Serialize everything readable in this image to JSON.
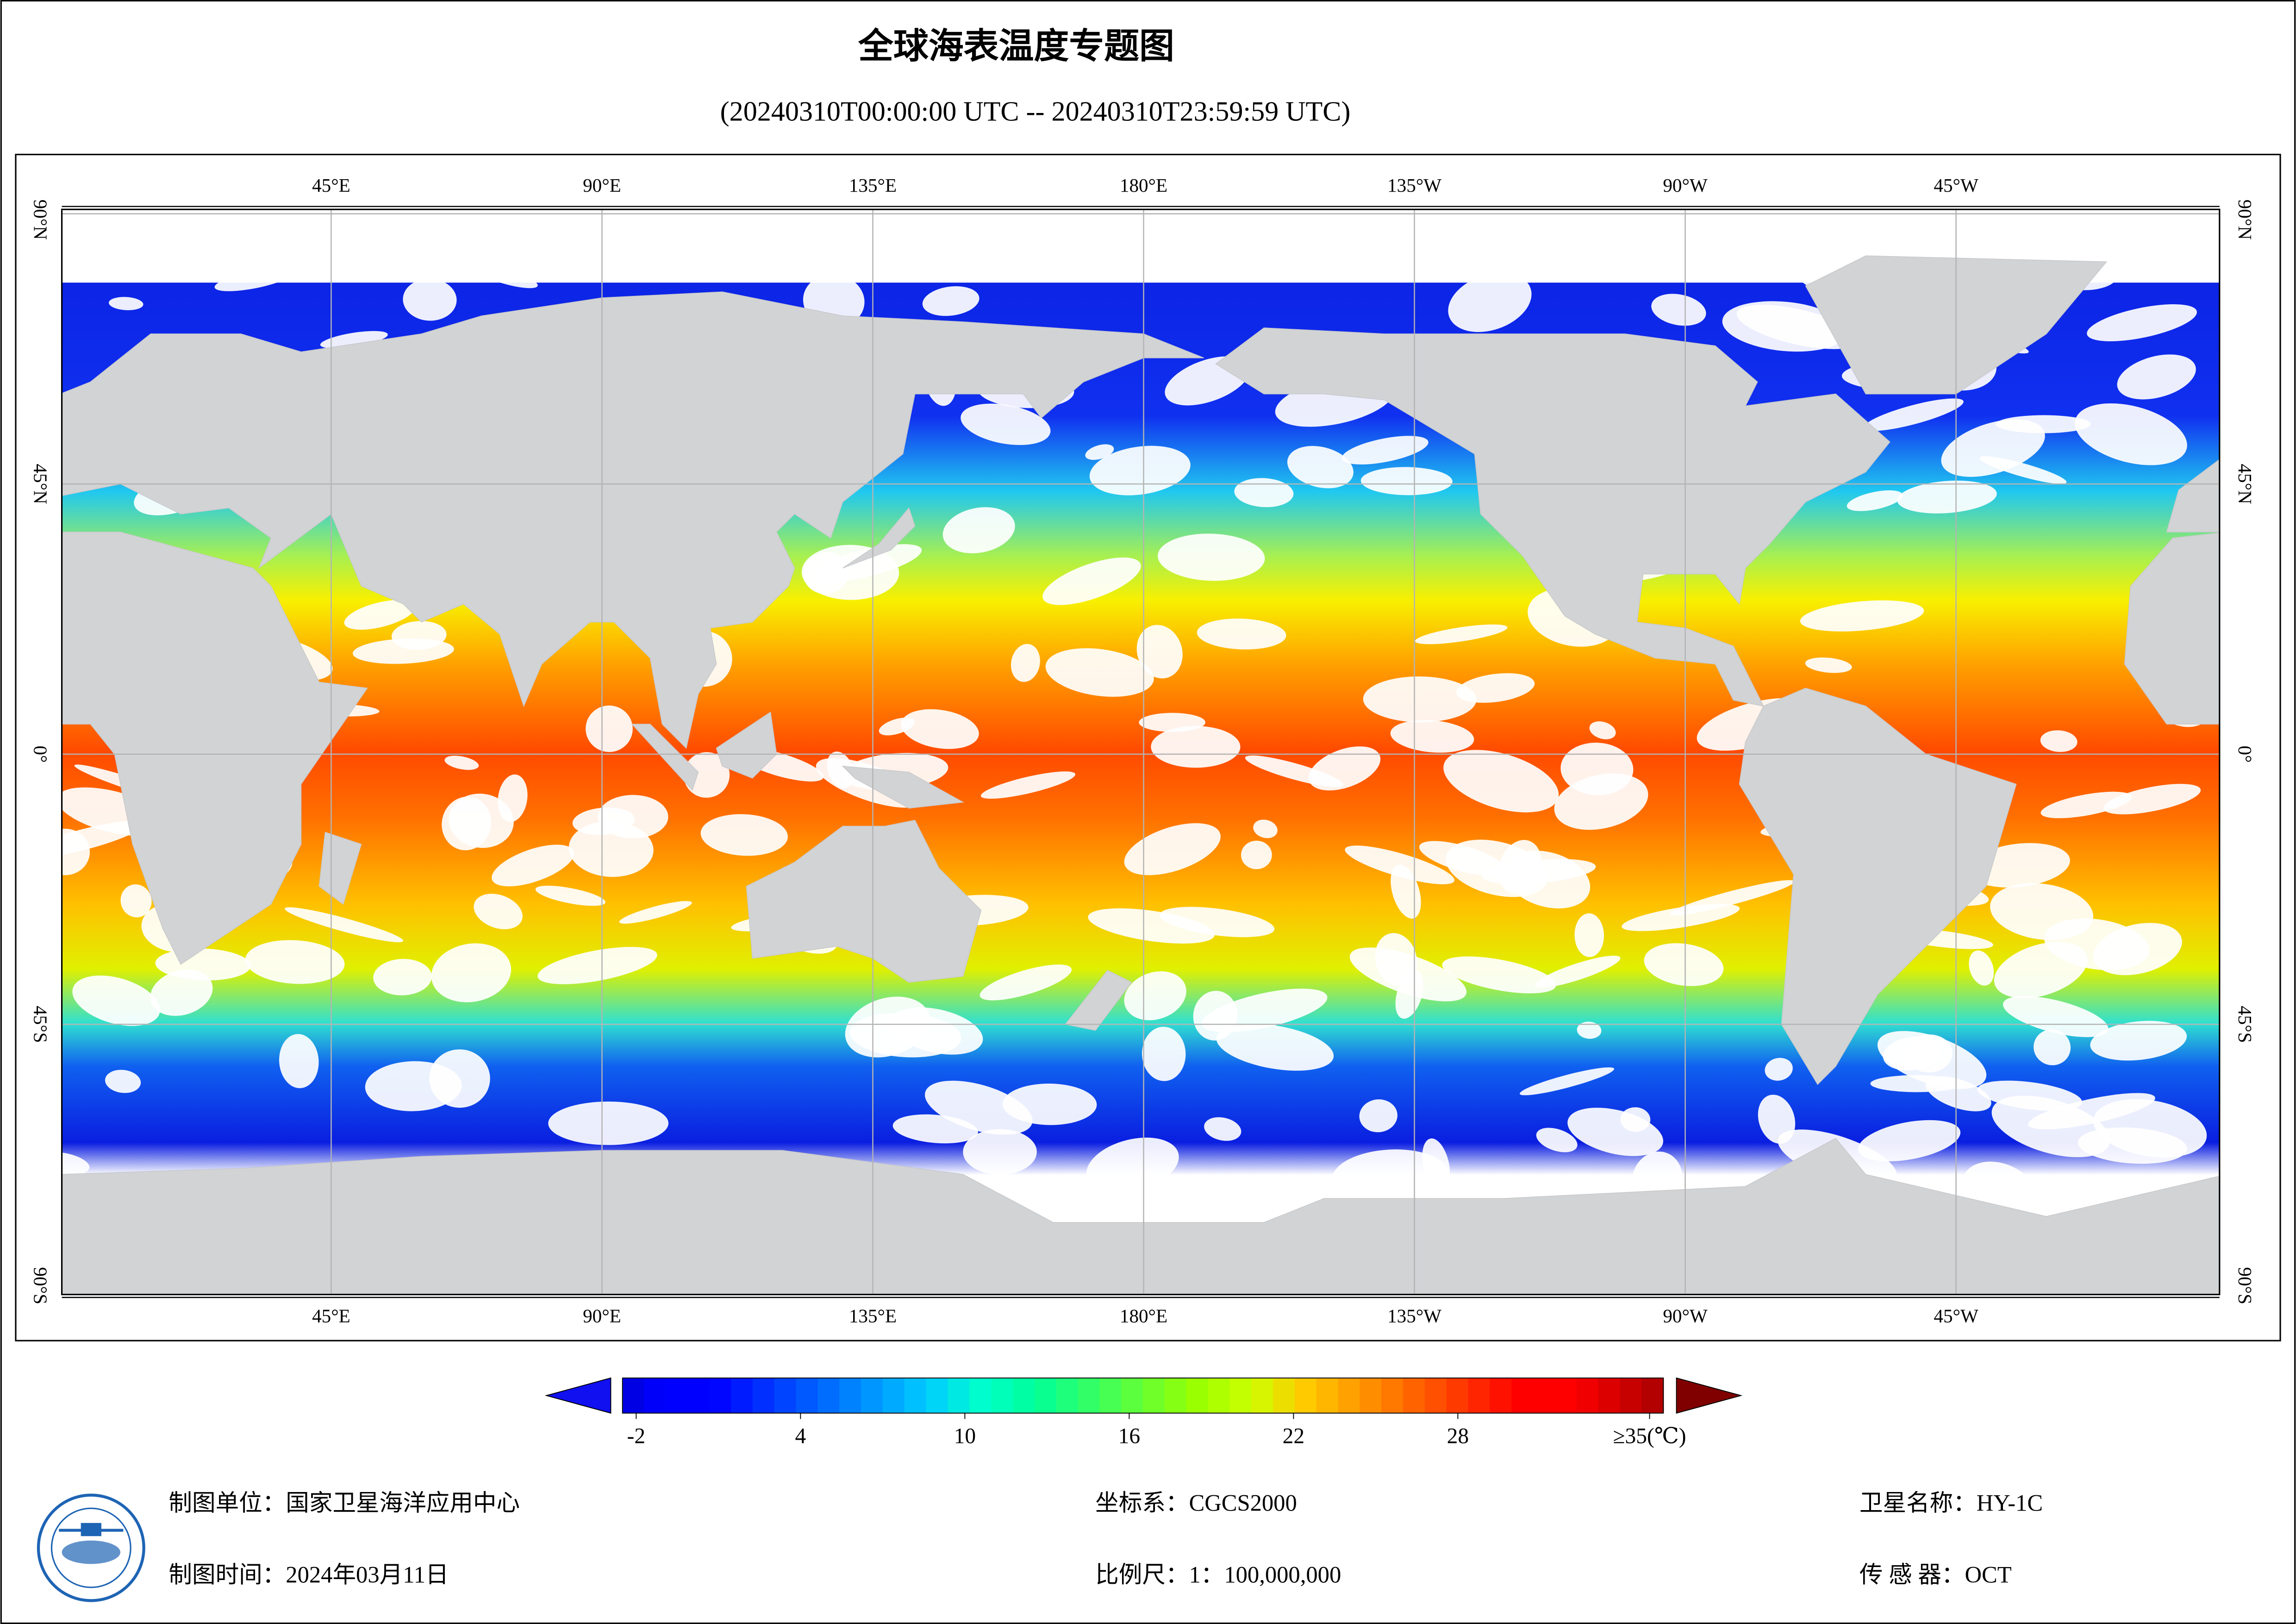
{
  "header": {
    "title": "全球海表温度专题图",
    "subtitle": "(20240310T00:00:00 UTC -- 20240310T23:59:59 UTC)"
  },
  "map": {
    "lon_ticks": [
      {
        "value": 45,
        "label": "45°E"
      },
      {
        "value": 90,
        "label": "90°E"
      },
      {
        "value": 135,
        "label": "135°E"
      },
      {
        "value": 180,
        "label": "180°E"
      },
      {
        "value": 225,
        "label": "135°W"
      },
      {
        "value": 270,
        "label": "90°W"
      },
      {
        "value": 315,
        "label": "45°W"
      }
    ],
    "lat_ticks": [
      {
        "value": 90,
        "label": "90°N"
      },
      {
        "value": 45,
        "label": "45°N"
      },
      {
        "value": 0,
        "label": "0°"
      },
      {
        "value": -45,
        "label": "45°S"
      },
      {
        "value": -90,
        "label": "90°S"
      }
    ]
  },
  "colorbar": {
    "range": [
      -2.5,
      35.5
    ],
    "ticks": [
      -2,
      4,
      10,
      16,
      22,
      28,
      {
        "value": 35,
        "label": "≥35(℃)"
      }
    ]
  },
  "footer": {
    "producer": "制图单位：国家卫星海洋应用中心",
    "date": "制图时间：2024年03月11日",
    "crs": "坐标系：CGCS2000",
    "scale": "比例尺：1：100,000,000",
    "satellite": "卫星名称：HY-1C",
    "sensor": "传 感 器：OCT"
  }
}
